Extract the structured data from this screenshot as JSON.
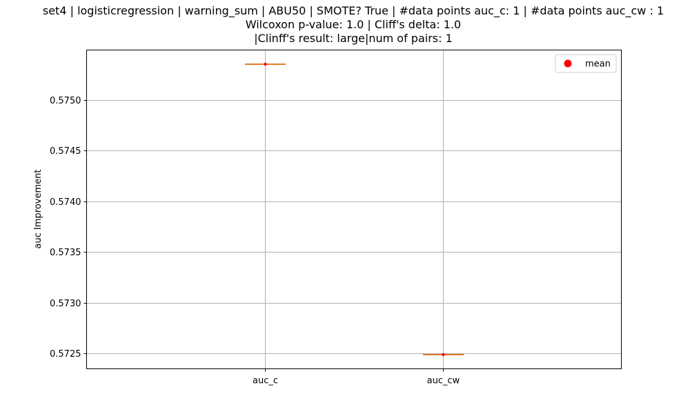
{
  "chart_data": {
    "type": "box",
    "title_lines": [
      "set4 | logisticregression | warning_sum | ABU50 | SMOTE? True | #data points auc_c: 1 | #data points auc_cw : 1",
      "Wilcoxon p-value: 1.0 | Cliff's delta: 1.0",
      "|Clinff's result: large|num of pairs: 1"
    ],
    "xlabel": "",
    "ylabel": "auc Improvement",
    "categories": [
      "auc_c",
      "auc_cw"
    ],
    "series": [
      {
        "category": "auc_c",
        "values": [
          0.57535
        ],
        "mean": 0.57535
      },
      {
        "category": "auc_cw",
        "values": [
          0.57249
        ],
        "mean": 0.57249
      }
    ],
    "ylim": [
      0.57235,
      0.57549
    ],
    "yticks": [
      0.5725,
      0.573,
      0.5735,
      0.574,
      0.5745,
      0.575
    ],
    "ytick_labels": [
      "0.5725",
      "0.5730",
      "0.5735",
      "0.5740",
      "0.5745",
      "0.5750"
    ],
    "grid": true,
    "legend": {
      "placement": "top-right",
      "entries": [
        {
          "label": "mean",
          "color": "#ff0000",
          "marker": "circle"
        }
      ]
    },
    "colors": {
      "median": "#ff7f0e",
      "mean": "#ff0000",
      "grid": "#b0b0b0",
      "axes": "#000000"
    }
  }
}
